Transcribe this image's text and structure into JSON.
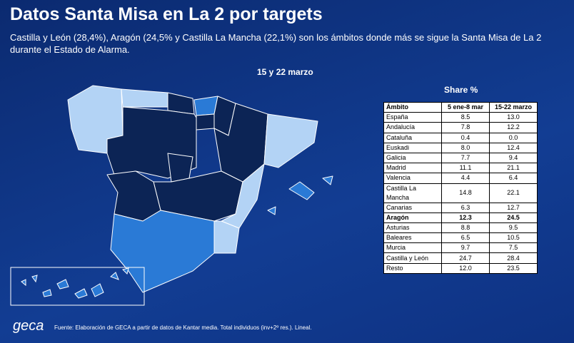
{
  "header": {
    "title": "Datos Santa Misa en La 2 por targets",
    "subtitle": "Castilla y León (28,4%), Aragón (24,5% y Castilla La Mancha (22,1%) son los ámbitos donde más se sigue la Santa Misa de La 2 durante el Estado de Alarma."
  },
  "map": {
    "title": "15 y 22 marzo"
  },
  "table": {
    "title": "Share %",
    "columns": [
      "Ámbito",
      "5 ene-8 mar",
      "15-22 marzo"
    ],
    "rows": [
      [
        "España",
        "8.5",
        "13.0"
      ],
      [
        "Andalucía",
        "7.8",
        "12.2"
      ],
      [
        "Cataluña",
        "0.4",
        "0.0"
      ],
      [
        "Euskadi",
        "8.0",
        "12.4"
      ],
      [
        "Galicia",
        "7.7",
        "9.4"
      ],
      [
        "Madrid",
        "11.1",
        "21.1"
      ],
      [
        "Valencia",
        "4.4",
        "6.4"
      ],
      [
        "Castilla La Mancha",
        "14.8",
        "22.1"
      ],
      [
        "Canarias",
        "6.3",
        "12.7"
      ],
      [
        "Aragón",
        "12.3",
        "24.5"
      ],
      [
        "Asturias",
        "8.8",
        "9.5"
      ],
      [
        "Baleares",
        "6.5",
        "10.5"
      ],
      [
        "Murcia",
        "9.7",
        "7.5"
      ],
      [
        "Castilla y León",
        "24.7",
        "28.4"
      ],
      [
        "Resto",
        "12.0",
        "23.5"
      ]
    ]
  },
  "footer": {
    "logo": "geca",
    "source": "Fuente: Elaboración de GECA a partir de datos de Kantar media. Total individuos (inv+2º res.). Lineal."
  }
}
